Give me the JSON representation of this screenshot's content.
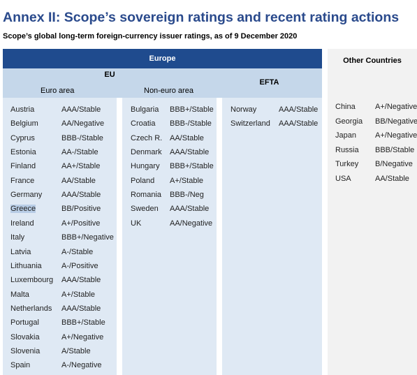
{
  "title": "Annex II: Scope’s sovereign ratings and recent rating actions",
  "subtitle": "Scope’s global long-term foreign-currency issuer ratings, as of 9 December 2020",
  "headers": {
    "europe": "Europe",
    "eu": "EU",
    "euro_area": "Euro area",
    "non_euro_area": "Non-euro area",
    "efta": "EFTA",
    "other": "Other Countries"
  },
  "colors": {
    "header_blue": "#1f4b8e",
    "light_blue": "#c5d7ea",
    "panel_blue": "#dfe9f4",
    "title_blue": "#2a4a8c"
  },
  "euro_area": [
    {
      "country": "Austria",
      "rating": "AAA/Stable"
    },
    {
      "country": "Belgium",
      "rating": "AA/Negative"
    },
    {
      "country": "Cyprus",
      "rating": "BBB-/Stable"
    },
    {
      "country": "Estonia",
      "rating": "AA-/Stable"
    },
    {
      "country": "Finland",
      "rating": "AA+/Stable"
    },
    {
      "country": "France",
      "rating": "AA/Stable"
    },
    {
      "country": "Germany",
      "rating": "AAA/Stable"
    },
    {
      "country": "Greece",
      "rating": "BB/Positive",
      "highlighted": true
    },
    {
      "country": "Ireland",
      "rating": "A+/Positive"
    },
    {
      "country": "Italy",
      "rating": "BBB+/Negative"
    },
    {
      "country": "Latvia",
      "rating": "A-/Stable"
    },
    {
      "country": "Lithuania",
      "rating": "A-/Positive"
    },
    {
      "country": "Luxembourg",
      "rating": "AAA/Stable"
    },
    {
      "country": "Malta",
      "rating": "A+/Stable"
    },
    {
      "country": "Netherlands",
      "rating": "AAA/Stable"
    },
    {
      "country": "Portugal",
      "rating": "BBB+/Stable"
    },
    {
      "country": "Slovakia",
      "rating": "A+/Negative"
    },
    {
      "country": "Slovenia",
      "rating": "A/Stable"
    },
    {
      "country": "Spain",
      "rating": "A-/Negative"
    }
  ],
  "non_euro_area": [
    {
      "country": "Bulgaria",
      "rating": "BBB+/Stable"
    },
    {
      "country": "Croatia",
      "rating": "BBB-/Stable"
    },
    {
      "country": "Czech R.",
      "rating": "AA/Stable"
    },
    {
      "country": "Denmark",
      "rating": "AAA/Stable"
    },
    {
      "country": "Hungary",
      "rating": "BBB+/Stable"
    },
    {
      "country": "Poland",
      "rating": "A+/Stable"
    },
    {
      "country": "Romania",
      "rating": "BBB-/Neg"
    },
    {
      "country": "Sweden",
      "rating": "AAA/Stable"
    },
    {
      "country": "UK",
      "rating": "AA/Negative"
    }
  ],
  "efta": [
    {
      "country": "Norway",
      "rating": "AAA/Stable"
    },
    {
      "country": "Switzerland",
      "rating": "AAA/Stable"
    }
  ],
  "other": [
    {
      "country": "China",
      "rating": "A+/Negative"
    },
    {
      "country": "Georgia",
      "rating": "BB/Negative"
    },
    {
      "country": "Japan",
      "rating": "A+/Negative"
    },
    {
      "country": "Russia",
      "rating": "BBB/Stable"
    },
    {
      "country": "Turkey",
      "rating": "B/Negative"
    },
    {
      "country": "USA",
      "rating": "AA/Stable"
    }
  ]
}
